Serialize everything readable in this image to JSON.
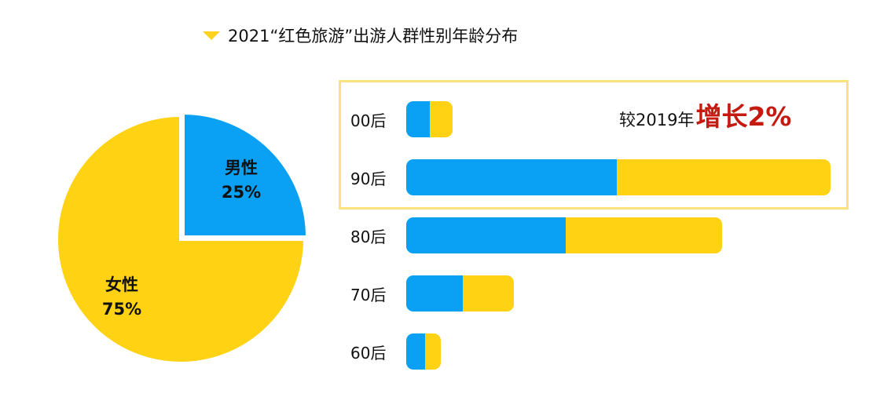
{
  "title": "2021“红色旅游”出游人群性别年龄分布",
  "colors": {
    "male": "#0AA1F4",
    "female": "#FFD214",
    "highlight": "#C41A10",
    "marker": "#FFD21F"
  },
  "annotation": {
    "prefix": "较2019年",
    "value": "增长2%"
  },
  "chart_data": [
    {
      "type": "pie",
      "labels": [
        "男性",
        "女性"
      ],
      "values": [
        25,
        75
      ],
      "value_labels": [
        "25%",
        "75%"
      ]
    },
    {
      "type": "bar",
      "orientation": "horizontal",
      "stacked": true,
      "categories": [
        "00后",
        "90后",
        "80后",
        "70后",
        "60后"
      ],
      "series": [
        {
          "name": "男性",
          "values": [
            2.1,
            18.7,
            14.2,
            5.0,
            1.7
          ]
        },
        {
          "name": "女性",
          "values": [
            2.0,
            19.0,
            13.9,
            4.6,
            1.4
          ]
        }
      ],
      "xlim": [
        0,
        37.7
      ],
      "axes_visible": false
    }
  ]
}
